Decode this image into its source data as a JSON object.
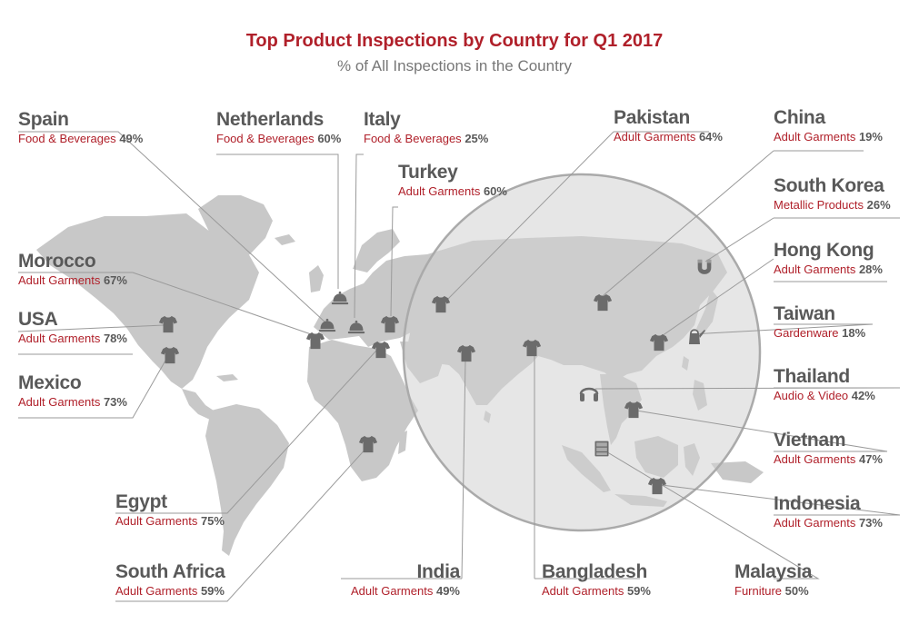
{
  "title": "Top Product Inspections by Country for Q1 2017",
  "subtitle": "% of All Inspections in the Country",
  "colors": {
    "accent": "#b0202a",
    "text": "#595959",
    "land": "#c8c8c8",
    "icon": "#6b6b6b"
  },
  "countries": {
    "spain": {
      "name": "Spain",
      "category": "Food & Beverages",
      "pct": "49%",
      "icon": "cloche-icon"
    },
    "netherlands": {
      "name": "Netherlands",
      "category": "Food & Beverages",
      "pct": "60%",
      "icon": "cloche-icon"
    },
    "italy": {
      "name": "Italy",
      "category": "Food & Beverages",
      "pct": "25%",
      "icon": "cloche-icon"
    },
    "turkey": {
      "name": "Turkey",
      "category": "Adult Garments",
      "pct": "60%",
      "icon": "tshirt-icon"
    },
    "pakistan": {
      "name": "Pakistan",
      "category": "Adult Garments",
      "pct": "64%",
      "icon": "tshirt-icon"
    },
    "china": {
      "name": "China",
      "category": "Adult Garments",
      "pct": "19%",
      "icon": "tshirt-icon"
    },
    "south_korea": {
      "name": "South Korea",
      "category": "Metallic Products",
      "pct": "26%",
      "icon": "magnet-icon"
    },
    "hong_kong": {
      "name": "Hong Kong",
      "category": "Adult Garments",
      "pct": "28%",
      "icon": "tshirt-icon"
    },
    "taiwan": {
      "name": "Taiwan",
      "category": "Gardenware",
      "pct": "18%",
      "icon": "watering-can-icon"
    },
    "thailand": {
      "name": "Thailand",
      "category": "Audio & Video",
      "pct": "42%",
      "icon": "headphones-icon"
    },
    "vietnam": {
      "name": "Vietnam",
      "category": "Adult Garments",
      "pct": "47%",
      "icon": "tshirt-icon"
    },
    "indonesia": {
      "name": "Indonesia",
      "category": "Adult Garments",
      "pct": "73%",
      "icon": "tshirt-icon"
    },
    "malaysia": {
      "name": "Malaysia",
      "category": "Furniture",
      "pct": "50%",
      "icon": "cabinet-icon"
    },
    "bangladesh": {
      "name": "Bangladesh",
      "category": "Adult Garments",
      "pct": "59%",
      "icon": "tshirt-icon"
    },
    "india": {
      "name": "India",
      "category": "Adult Garments",
      "pct": "49%",
      "icon": "tshirt-icon"
    },
    "south_africa": {
      "name": "South Africa",
      "category": "Adult Garments",
      "pct": "59%",
      "icon": "tshirt-icon"
    },
    "egypt": {
      "name": "Egypt",
      "category": "Adult Garments",
      "pct": "75%",
      "icon": "tshirt-icon"
    },
    "mexico": {
      "name": "Mexico",
      "category": "Adult Garments",
      "pct": "73%",
      "icon": "tshirt-icon"
    },
    "usa": {
      "name": "USA",
      "category": "Adult Garments",
      "pct": "78%",
      "icon": "tshirt-icon"
    },
    "morocco": {
      "name": "Morocco",
      "category": "Adult Garments",
      "pct": "67%",
      "icon": "tshirt-icon"
    }
  }
}
